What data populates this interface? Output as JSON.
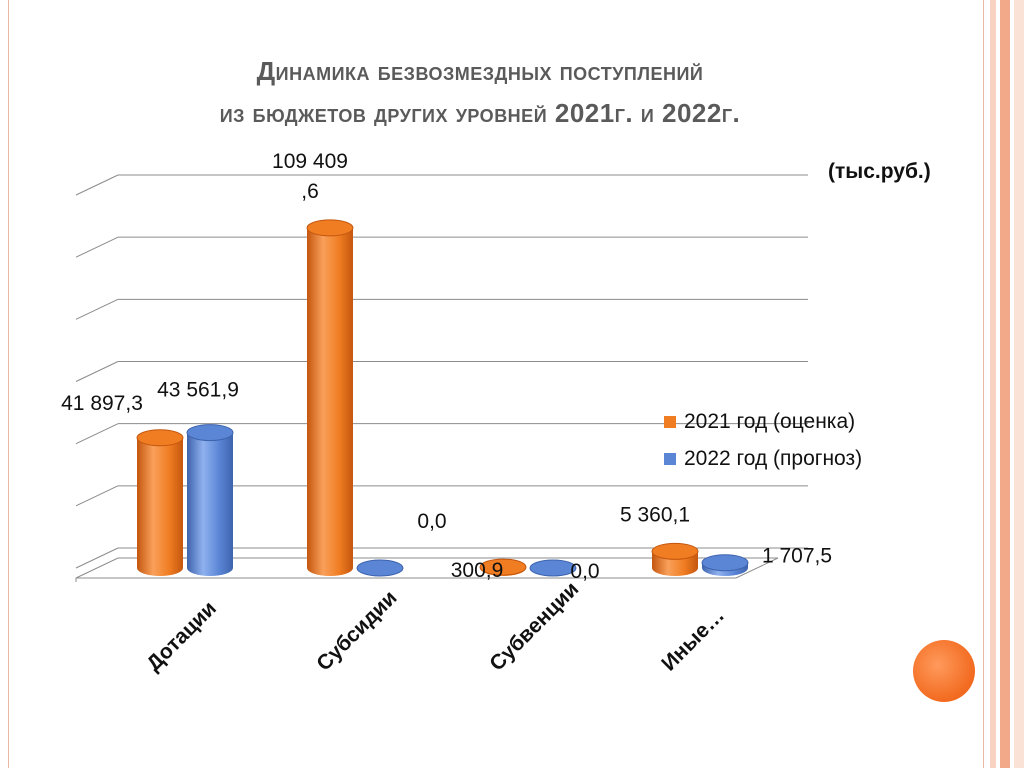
{
  "slide": {
    "title_line1": "Динамика безвозмездных поступлений",
    "title_line2": "из бюджетов других уровней 2021г. и 2022г.",
    "units": "(тыс.руб.)"
  },
  "colors": {
    "series_2021": "#f07d22",
    "series_2022": "#5b86d6",
    "accent_dot": "#f26a1f",
    "stripes": [
      "#f9d3c2",
      "#f2a98a",
      "#fbe2d6"
    ]
  },
  "chart_data": {
    "type": "bar",
    "categories": [
      "Дотации",
      "Субсидии",
      "Субвенции",
      "Иные…"
    ],
    "series": [
      {
        "name": "2021 год (оценка)",
        "values": [
          41897.3,
          109409.6,
          300.9,
          5360.1
        ],
        "labels": [
          "41 897,3",
          "109 409\n,6",
          "300,9",
          "5 360,1"
        ]
      },
      {
        "name": "2022 год (прогноз)",
        "values": [
          43561.9,
          0.0,
          0.0,
          1707.5
        ],
        "labels": [
          "43 561,9",
          "0,0",
          "0,0",
          "1 707,5"
        ]
      }
    ],
    "ylim": [
      0,
      120000
    ],
    "grid": true,
    "legend": "right",
    "style": "3d-cylinder"
  }
}
